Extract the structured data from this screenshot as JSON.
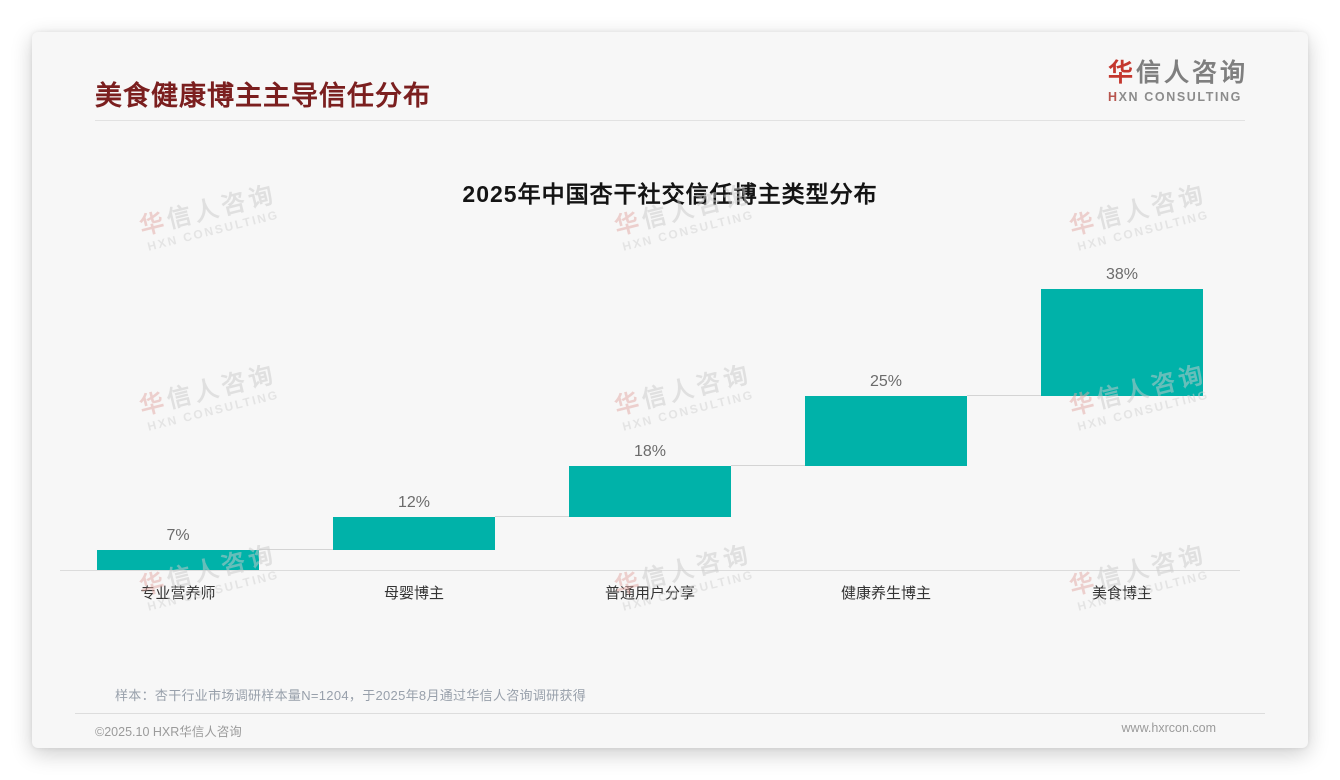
{
  "page": {
    "title": "美食健康博主主导信任分布",
    "logo": {
      "line1": "华信人咨询",
      "line2": "HXN CONSULTING"
    }
  },
  "chart_data": {
    "type": "bar",
    "variant": "waterfall-steps",
    "title": "2025年中国杏干社交信任博主类型分布",
    "categories": [
      "专业营养师",
      "母婴博主",
      "普通用户分享",
      "健康养生博主",
      "美食博主"
    ],
    "values": [
      7,
      12,
      18,
      25,
      38
    ],
    "value_labels": [
      "7%",
      "12%",
      "18%",
      "25%",
      "38%"
    ],
    "unit": "%",
    "ylim": [
      0,
      100
    ],
    "cumulative_total": 100,
    "gridlines": false,
    "legend": "none",
    "bar_color": "#00b2a9",
    "connector_color": "#d4d4d4",
    "axis_color": "#dcdcdc"
  },
  "footnote": "样本：杏干行业市场调研样本量N=1204，于2025年8月通过华信人咨询调研获得",
  "footer": {
    "left": "©2025.10 HXR华信人咨询",
    "right": "www.hxrcon.com"
  },
  "watermark": {
    "line1": "华信人咨询",
    "line2": "HXN CONSULTING"
  },
  "colors": {
    "title_maroon": "#7b1f1f",
    "brand_red": "#c4372e",
    "teal": "#00b2a9",
    "card_bg": "#f7f7f7"
  }
}
